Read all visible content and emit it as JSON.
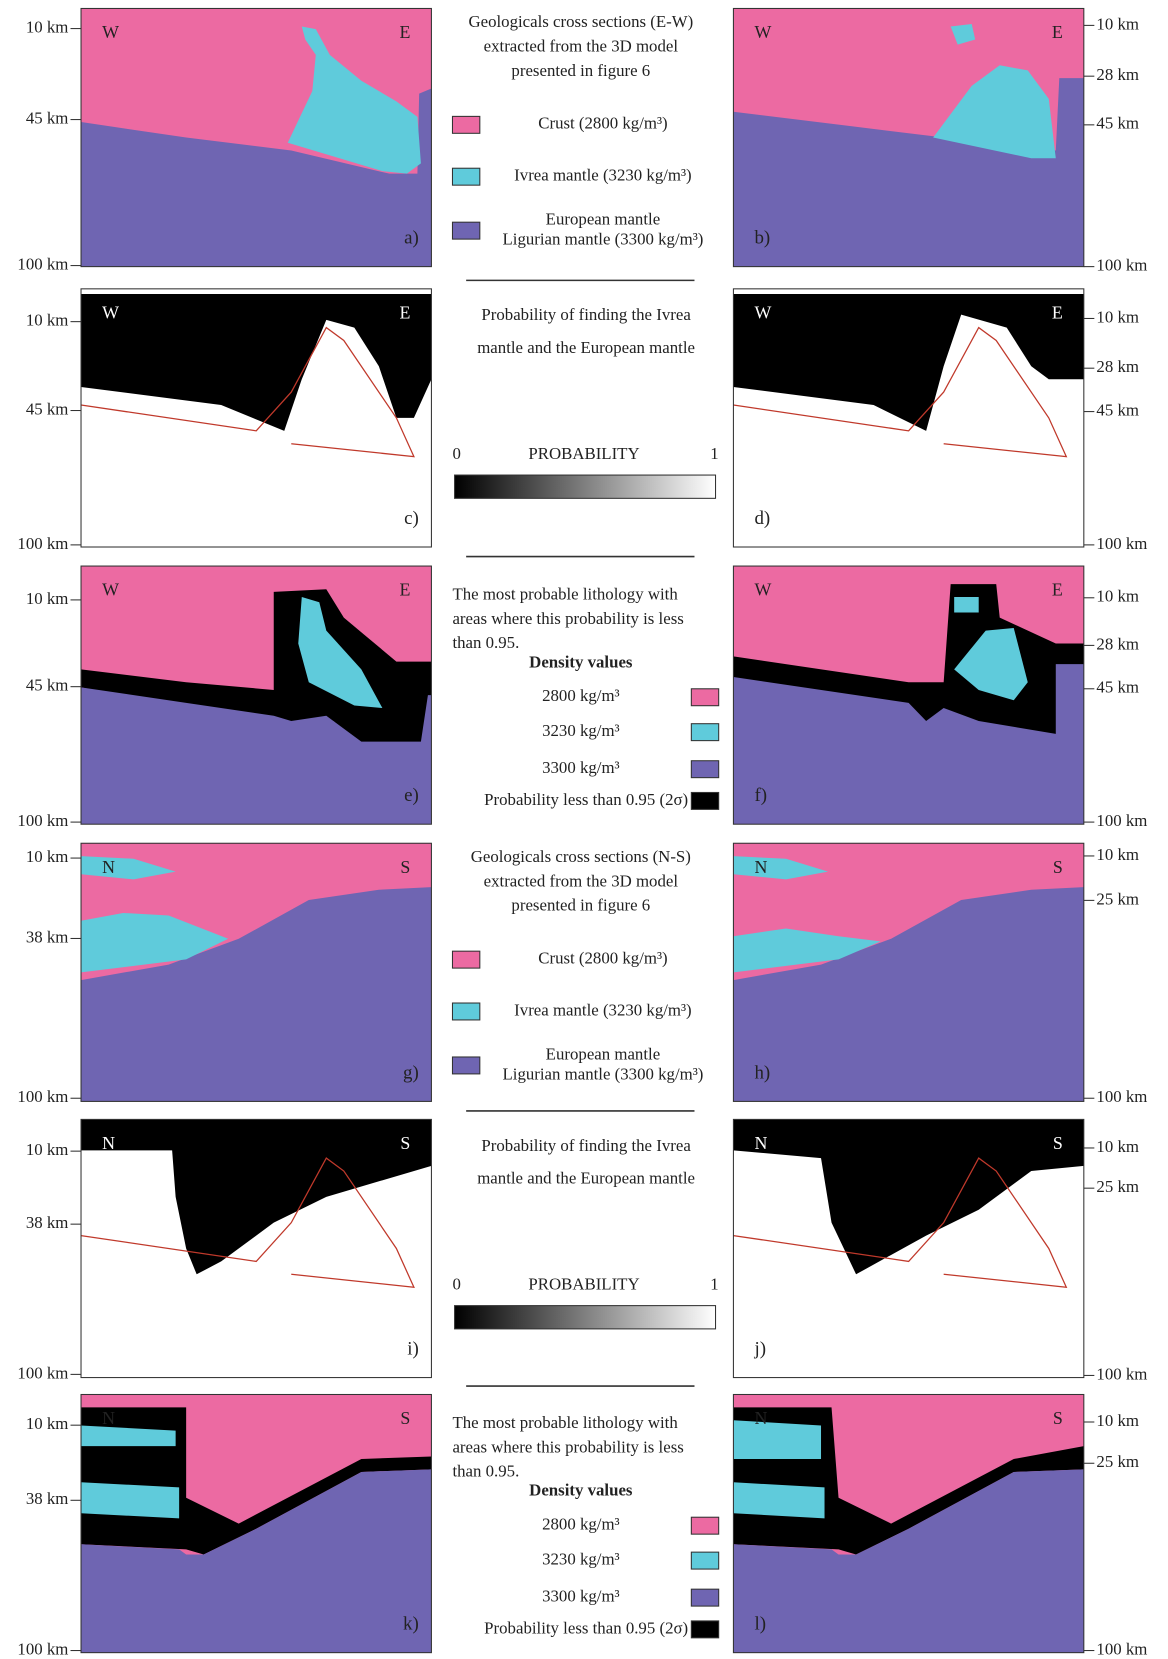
{
  "rows": [
    {
      "left": {
        "label": "a)",
        "dir": [
          "W",
          "E"
        ],
        "ticks": [
          "10 km",
          "45 km",
          "100 km"
        ]
      },
      "right": {
        "label": "b)",
        "dir": [
          "W",
          "E"
        ],
        "ticks": [
          "10 km",
          "28 km",
          "45 km",
          "100 km"
        ]
      }
    },
    {
      "left": {
        "label": "c)",
        "dir": [
          "W",
          "E"
        ],
        "ticks": [
          "10 km",
          "45 km",
          "100 km"
        ]
      },
      "right": {
        "label": "d)",
        "dir": [
          "W",
          "E"
        ],
        "ticks": [
          "10 km",
          "28 km",
          "45 km",
          "100 km"
        ]
      }
    },
    {
      "left": {
        "label": "e)",
        "dir": [
          "W",
          "E"
        ],
        "ticks": [
          "10 km",
          "45 km",
          "100 km"
        ]
      },
      "right": {
        "label": "f)",
        "dir": [
          "W",
          "E"
        ],
        "ticks": [
          "10 km",
          "28 km",
          "45 km",
          "100 km"
        ]
      }
    },
    {
      "left": {
        "label": "g)",
        "dir": [
          "N",
          "S"
        ],
        "ticks": [
          "10 km",
          "38 km",
          "100 km"
        ]
      },
      "right": {
        "label": "h)",
        "dir": [
          "N",
          "S"
        ],
        "ticks": [
          "10 km",
          "25 km",
          "100 km"
        ]
      }
    },
    {
      "left": {
        "label": "i)",
        "dir": [
          "N",
          "S"
        ],
        "ticks": [
          "10 km",
          "38 km",
          "100 km"
        ]
      },
      "right": {
        "label": "j)",
        "dir": [
          "N",
          "S"
        ],
        "ticks": [
          "10 km",
          "25 km",
          "100 km"
        ]
      }
    },
    {
      "left": {
        "label": "k)",
        "dir": [
          "N",
          "S"
        ],
        "ticks": [
          "10 km",
          "38 km",
          "100 km"
        ]
      },
      "right": {
        "label": "l)",
        "dir": [
          "N",
          "S"
        ],
        "ticks": [
          "10 km",
          "25 km",
          "100 km"
        ]
      }
    }
  ],
  "middle": [
    {
      "caption": [
        "Geologicals cross sections (E-W)",
        "extracted from  the 3D model",
        "presented in figure 6"
      ],
      "items": [
        [
          "Crust (2800 kg/m³)"
        ],
        [
          "Ivrea mantle (3230 kg/m³)"
        ],
        [
          "European mantle",
          "Ligurian mantle (3300 kg/m³)"
        ]
      ]
    },
    {
      "caption": [
        "Probability of finding the Ivrea",
        "mantle and the European mantle"
      ],
      "scale": {
        "min": "0",
        "title": "PROBABILITY",
        "max": "1"
      }
    },
    {
      "caption": [
        "The most probable lithology with",
        "areas where this probability is less",
        "than 0.95."
      ],
      "heading": "Density values",
      "items": [
        [
          "2800 kg/m³"
        ],
        [
          "3230 kg/m³"
        ],
        [
          "3300 kg/m³"
        ],
        [
          "Probability less than 0.95 (2σ)"
        ]
      ]
    },
    {
      "caption": [
        "Geologicals cross sections (N-S)",
        "extracted from  the 3D model",
        "presented in figure 6"
      ],
      "items": [
        [
          "Crust (2800 kg/m³)"
        ],
        [
          "Ivrea mantle (3230 kg/m³)"
        ],
        [
          "European mantle",
          "Ligurian mantle (3300 kg/m³)"
        ]
      ]
    },
    {
      "caption": [
        "Probability of finding the Ivrea",
        "mantle and the European mantle"
      ],
      "scale": {
        "min": "0",
        "title": "PROBABILITY",
        "max": "1"
      }
    },
    {
      "caption": [
        "The most probable lithology with",
        "areas where this probability is less",
        "than 0.95."
      ],
      "heading": "Density values",
      "items": [
        [
          "2800 kg/m³"
        ],
        [
          "3230 kg/m³"
        ],
        [
          "3300 kg/m³"
        ],
        [
          "Probability less than 0.95 (2σ)"
        ]
      ]
    }
  ]
}
